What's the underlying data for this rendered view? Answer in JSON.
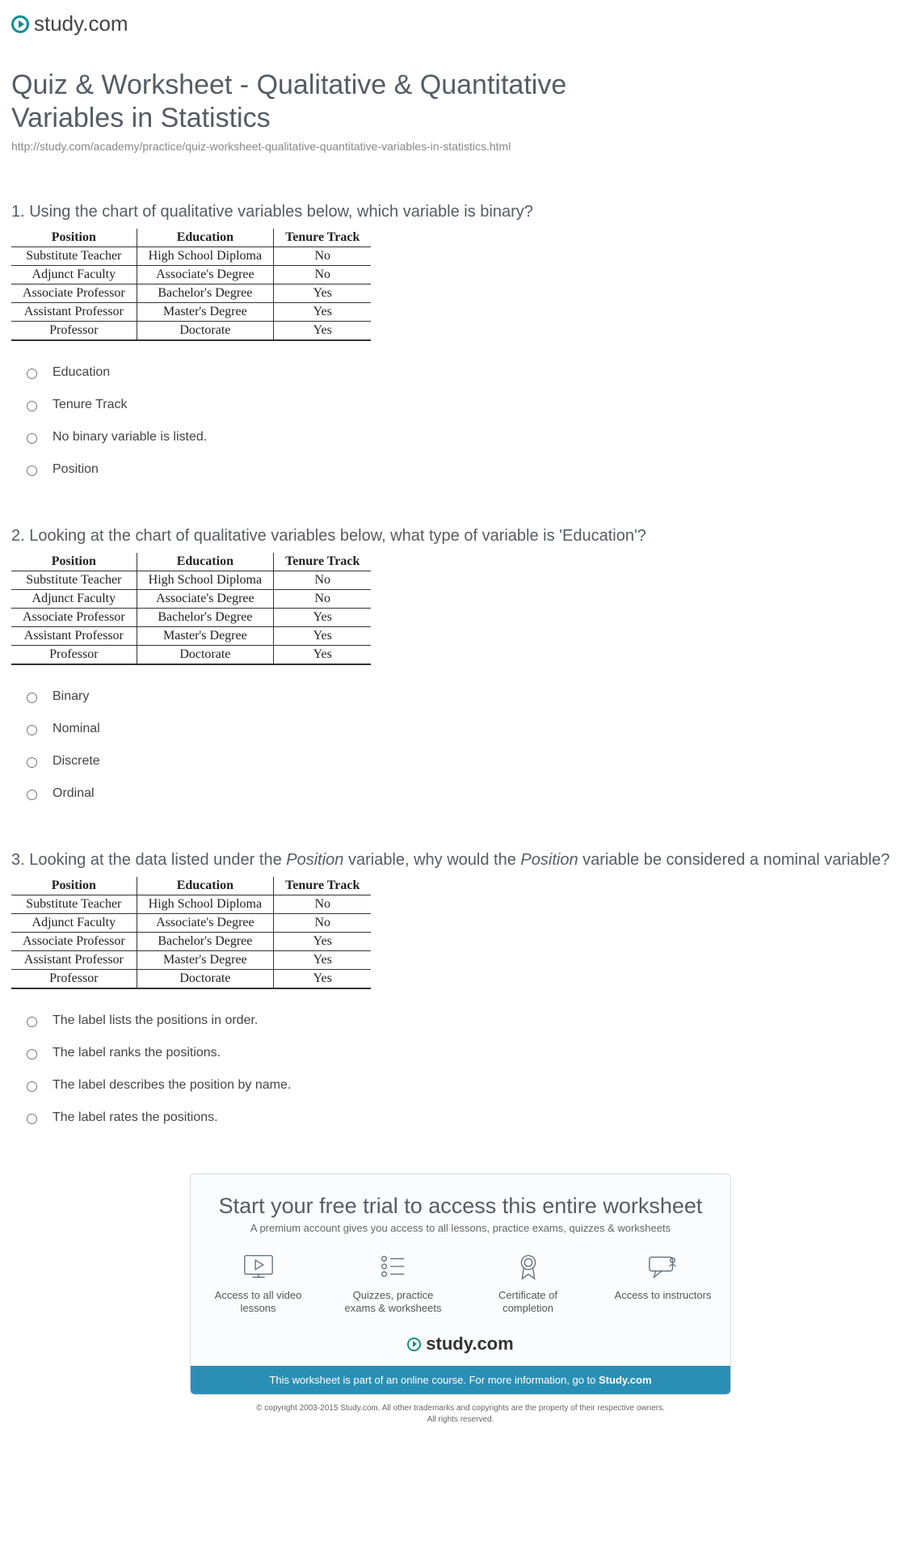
{
  "logo_text": "study.com",
  "title": "Quiz & Worksheet - Qualitative & Quantitative Variables in Statistics",
  "url": "http://study.com/academy/practice/quiz-worksheet-qualitative-quantitative-variables-in-statistics.html",
  "table": {
    "columns": [
      "Position",
      "Education",
      "Tenure Track"
    ],
    "rows": [
      [
        "Substitute Teacher",
        "High School Diploma",
        "No"
      ],
      [
        "Adjunct Faculty",
        "Associate's Degree",
        "No"
      ],
      [
        "Associate Professor",
        "Bachelor's Degree",
        "Yes"
      ],
      [
        "Assistant Professor",
        "Master's Degree",
        "Yes"
      ],
      [
        "Professor",
        "Doctorate",
        "Yes"
      ]
    ]
  },
  "questions": [
    {
      "number": "1.",
      "text_pre": "Using the chart of qualitative variables below, which variable is binary?",
      "options": [
        "Education",
        "Tenure Track",
        "No binary variable is listed.",
        "Position"
      ]
    },
    {
      "number": "2.",
      "text_pre": "Looking at the chart of qualitative variables below, what type of variable is 'Education'?",
      "options": [
        "Binary",
        "Nominal",
        "Discrete",
        "Ordinal"
      ]
    },
    {
      "number": "3.",
      "text_html": "Looking at the data listed under the <span class=\"italic\">Position</span> variable, why would the <span class=\"italic\">Position</span> variable be considered a nominal variable?",
      "options": [
        "The label lists the positions in order.",
        "The label ranks the positions.",
        "The label describes the position by name.",
        "The label rates the positions."
      ]
    }
  ],
  "promo": {
    "title": "Start your free trial to access this entire worksheet",
    "sub": "A premium account gives you access to all lessons, practice exams, quizzes & worksheets",
    "features": [
      "Access to all video lessons",
      "Quizzes, practice exams & worksheets",
      "Certificate of completion",
      "Access to instructors"
    ],
    "footer_pre": "This worksheet is part of an online course. For more information, go to ",
    "footer_bold": "Study.com"
  },
  "copyright_line1": "© copyright 2003-2015 Study.com. All other trademarks and copyrights are the property of their respective owners.",
  "copyright_line2": "All rights reserved.",
  "colors": {
    "heading": "#555c63",
    "text": "#444444",
    "url": "#888888",
    "table_border": "#333333",
    "promo_border": "#d8dde0",
    "promo_bg": "#fbfcfd",
    "promo_footer_bg": "#2b8fb5",
    "accent": "#0d8f8f",
    "background": "#ffffff"
  }
}
